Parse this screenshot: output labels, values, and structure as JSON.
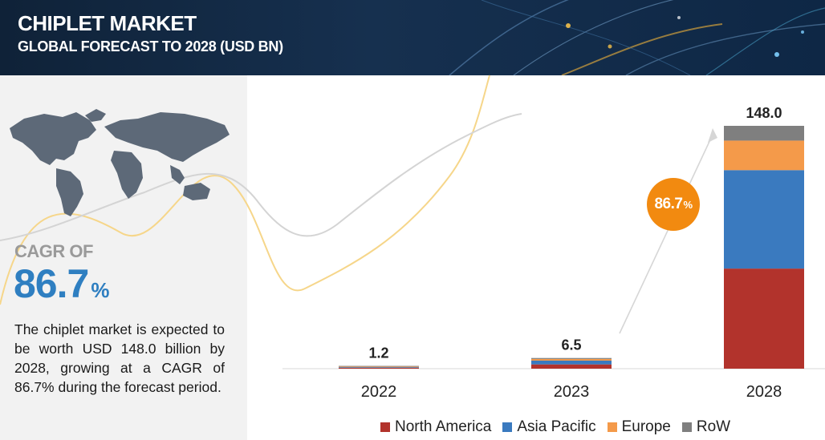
{
  "header": {
    "title": "CHIPLET MARKET",
    "subtitle": "GLOBAL FORECAST TO 2028 (USD BN)"
  },
  "left_panel": {
    "cagr_label": "CAGR OF",
    "cagr_value": "86.7",
    "cagr_unit": "%",
    "summary": "The chiplet market is expected to be worth USD 148.0 billion by 2028, growing at a CAGR of 86.7% during the forecast period."
  },
  "badge": {
    "value": "86.7",
    "unit": "%"
  },
  "colors": {
    "north_america": "#b2332c",
    "asia_pacific": "#3a7abf",
    "europe": "#f49a4a",
    "row": "#7f7f7f",
    "accent": "#f28a10",
    "header": "#16304f"
  },
  "icons": [
    "world-map-icon",
    "growth-arrow-icon"
  ],
  "chart_data": {
    "type": "bar",
    "stacked": true,
    "title": "CHIPLET MARKET",
    "subtitle": "GLOBAL FORECAST TO 2028 (USD BN)",
    "categories": [
      "2022",
      "2023",
      "2028"
    ],
    "totals": [
      "1.2",
      "6.5",
      "148.0"
    ],
    "series": [
      {
        "name": "North America",
        "values": [
          0.5,
          2.6,
          61.0
        ]
      },
      {
        "name": "Asia Pacific",
        "values": [
          0.4,
          2.3,
          60.0
        ]
      },
      {
        "name": "Europe",
        "values": [
          0.2,
          1.0,
          18.0
        ]
      },
      {
        "name": "RoW",
        "values": [
          0.1,
          0.6,
          9.0
        ]
      }
    ],
    "legend_position": "bottom",
    "grid": false,
    "ylim": [
      0,
      160
    ]
  }
}
